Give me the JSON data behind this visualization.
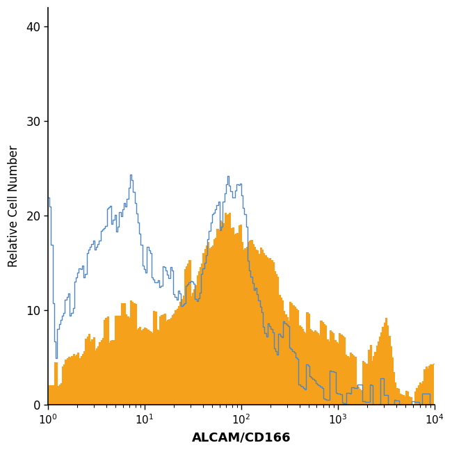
{
  "title": "",
  "xlabel": "ALCAM/CD166",
  "ylabel": "Relative Cell Number",
  "xlim_log": [
    1,
    10000
  ],
  "ylim": [
    0,
    42
  ],
  "yticks": [
    0,
    10,
    20,
    30,
    40
  ],
  "xticks_log": [
    1,
    10,
    100,
    1000,
    10000
  ],
  "blue_color": "#4f86c0",
  "orange_color": "#f5a11c",
  "background_color": "#ffffff",
  "figsize": [
    6.5,
    6.5
  ],
  "dpi": 100
}
